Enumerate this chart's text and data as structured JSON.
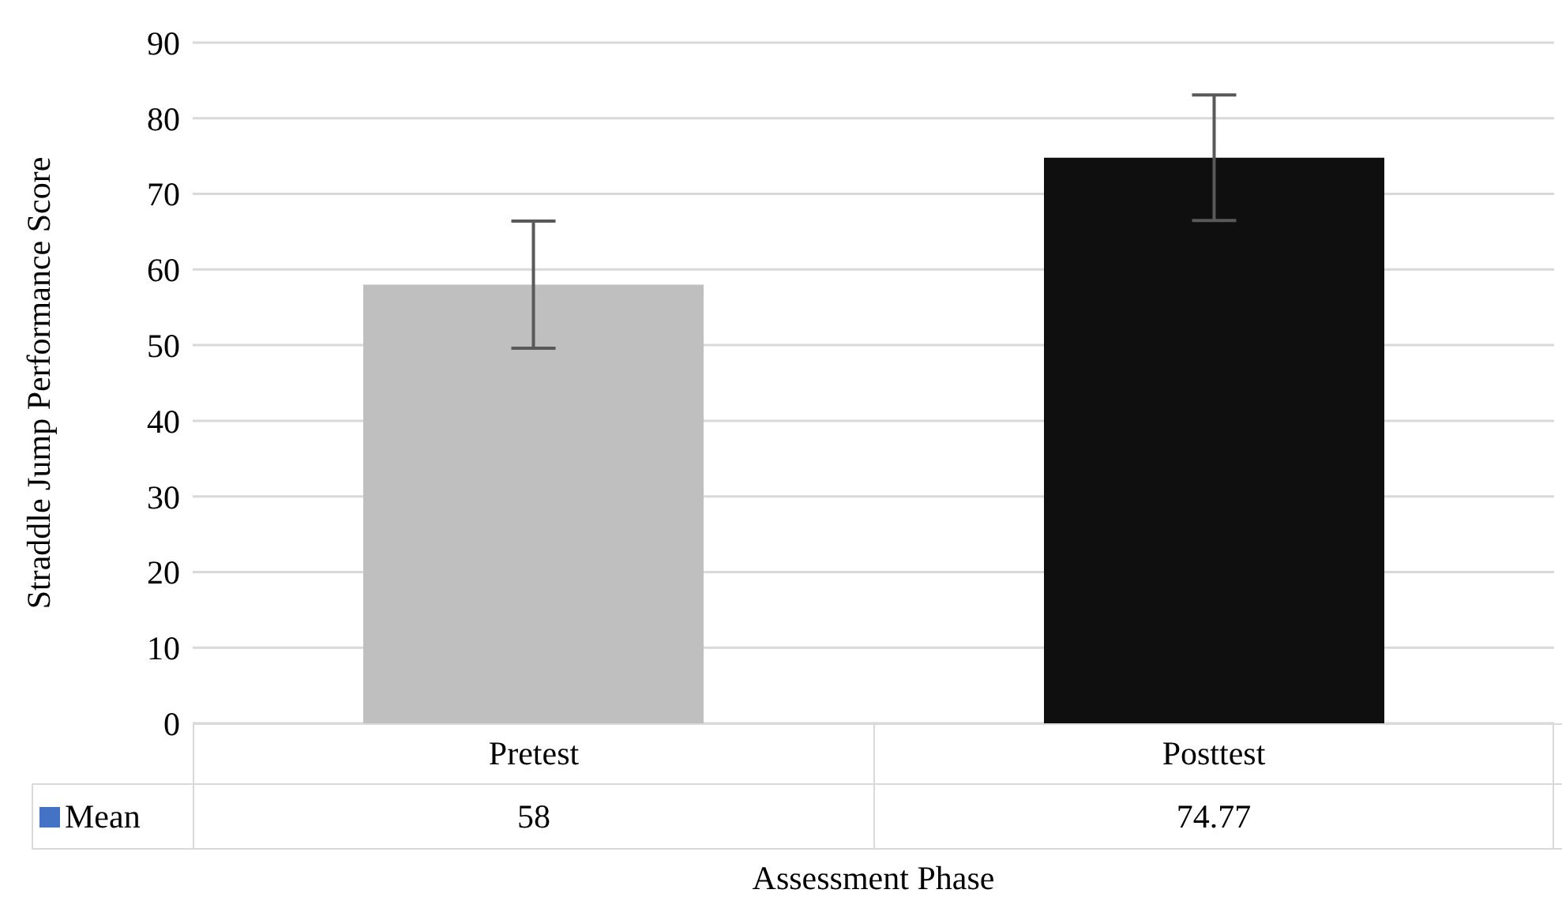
{
  "chart_data": {
    "type": "bar",
    "xlabel": "Assessment Phase",
    "ylabel": "Straddle Jump Performance Score",
    "categories": [
      "Pretest",
      "Posttest"
    ],
    "series": [
      {
        "name": "Mean",
        "color": "#4472c4",
        "colors": [
          "#bfbfbf",
          "#0f0f0f"
        ],
        "values": [
          58,
          74.77
        ],
        "errors": [
          8.4,
          8.3
        ]
      }
    ],
    "ylim": [
      0,
      90
    ],
    "yticks": [
      0,
      10,
      20,
      30,
      40,
      50,
      60,
      70,
      80,
      90
    ],
    "grid": "y",
    "data_labels": true,
    "legend": "bottom"
  }
}
